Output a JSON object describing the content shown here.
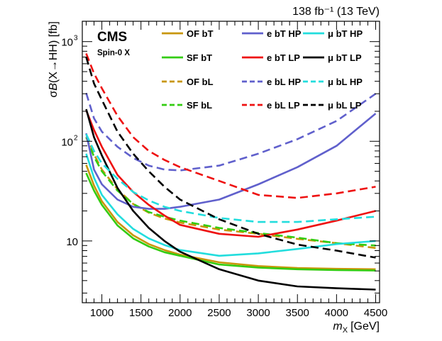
{
  "chart_data": {
    "type": "line",
    "title": "",
    "experiment": "CMS",
    "subtitle": "Spin-0 X",
    "lumi_label": "138 fb⁻¹ (13 TeV)",
    "xlabel": "m_X [GeV]",
    "xlabel_main": "m",
    "xlabel_sub": "X",
    "xlabel_unit": "[GeV]",
    "ylabel": "σB(X→HH) [fb]",
    "ylabel_sigma": "σ",
    "ylabel_b": "B",
    "ylabel_rest": "(X→HH) [fb]",
    "xscale": "linear",
    "yscale": "log",
    "xlim": [
      750,
      4550
    ],
    "ylim": [
      2.4,
      1600
    ],
    "xticks": [
      1000,
      1500,
      2000,
      2500,
      3000,
      3500,
      4000,
      4500
    ],
    "xtick_labels": [
      "1000",
      "1500",
      "2000",
      "2500",
      "3000",
      "3500",
      "4000",
      "4500"
    ],
    "yticks": [
      10,
      100,
      1000
    ],
    "ytick_labels": [
      "10",
      "10",
      "10"
    ],
    "ytick_exponents": [
      "",
      "2",
      "3"
    ],
    "legend_placement": "top-right",
    "x": [
      800,
      900,
      1000,
      1200,
      1400,
      1600,
      1800,
      2000,
      2500,
      3000,
      3500,
      4000,
      4500
    ],
    "series": [
      {
        "name": "OF bT",
        "color": "#c8960a",
        "style": "solid",
        "values": [
          58,
          36,
          25,
          15.5,
          11.4,
          9.3,
          8.1,
          7.3,
          6.1,
          5.6,
          5.35,
          5.25,
          5.2
        ]
      },
      {
        "name": "SF bT",
        "color": "#33cc11",
        "style": "solid",
        "values": [
          48,
          32,
          23,
          14.3,
          10.6,
          8.8,
          7.7,
          7.1,
          5.8,
          5.4,
          5.2,
          5.1,
          5.05
        ]
      },
      {
        "name": "OF bL",
        "color": "#c8960a",
        "style": "dashed",
        "values": [
          118,
          74,
          52,
          33,
          23.5,
          19.2,
          16.8,
          15.3,
          13,
          11.8,
          10.5,
          9.5,
          8.5
        ]
      },
      {
        "name": "SF bL",
        "color": "#33cc11",
        "style": "dashed",
        "values": [
          110,
          70,
          50,
          32,
          23.5,
          19.5,
          17.5,
          16,
          13.5,
          12,
          10.8,
          9.5,
          9
        ]
      },
      {
        "name": "e bT HP",
        "color": "#6060cc",
        "style": "solid",
        "values": [
          120,
          52,
          37,
          26,
          22,
          21,
          21,
          22,
          26,
          37,
          55,
          90,
          190
        ]
      },
      {
        "name": "e bT LP",
        "color": "#ee1111",
        "style": "solid",
        "values": [
          205,
          130,
          88,
          46,
          31,
          23,
          18,
          14.5,
          11.8,
          11,
          13,
          16,
          20
        ]
      },
      {
        "name": "e bL HP",
        "color": "#6060cc",
        "style": "dashed",
        "values": [
          305,
          170,
          125,
          88,
          68,
          57,
          52,
          51,
          57,
          75,
          105,
          160,
          300
        ]
      },
      {
        "name": "e bL LP",
        "color": "#ee1111",
        "style": "dashed",
        "values": [
          760,
          480,
          340,
          180,
          110,
          80,
          65,
          55,
          40,
          29,
          27,
          30,
          35
        ]
      },
      {
        "name": "μ bT HP",
        "color": "#22dddd",
        "style": "solid",
        "values": [
          75,
          43,
          29,
          18.5,
          13.2,
          10.6,
          9.1,
          8.1,
          7.1,
          7.5,
          8.3,
          9.3,
          10
        ]
      },
      {
        "name": "μ bT LP",
        "color": "#000000",
        "style": "solid",
        "values": [
          210,
          110,
          72,
          34,
          20,
          13.5,
          10,
          7.8,
          5.2,
          4.0,
          3.5,
          3.35,
          3.25
        ]
      },
      {
        "name": "μ bL HP",
        "color": "#22dddd",
        "style": "dashed",
        "values": [
          118,
          80,
          60,
          42,
          31,
          25.5,
          22,
          20,
          17,
          15.5,
          15.5,
          16.5,
          17.5
        ]
      },
      {
        "name": "μ bL LP",
        "color": "#000000",
        "style": "dashed",
        "values": [
          700,
          380,
          260,
          125,
          75,
          50,
          35,
          26,
          16.5,
          11.8,
          9.2,
          8.0,
          6.8
        ]
      }
    ],
    "legend": {
      "columns": [
        [
          "OF bT",
          "SF bT",
          "OF bL",
          "SF bL"
        ],
        [
          "e bT HP",
          "e bT LP",
          "e bL HP",
          "e bL LP"
        ],
        [
          "μ bT HP",
          "μ bT LP",
          "μ bL HP",
          "μ bL LP"
        ]
      ]
    }
  }
}
